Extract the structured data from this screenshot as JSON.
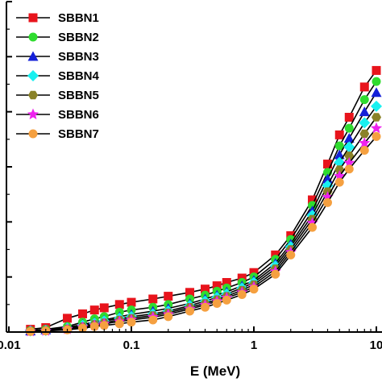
{
  "chart_data": {
    "type": "line",
    "xscale": "log",
    "xlabel": "E (MeV)",
    "ylabel": "",
    "xlim": [
      0.01,
      10
    ],
    "ylim": [
      0,
      600
    ],
    "x_tick_labels": [
      "0.01",
      "0.1",
      "1",
      "10"
    ],
    "x_ticks": [
      0.01,
      0.1,
      1,
      10
    ],
    "y_ticks": [
      0,
      100,
      200,
      300,
      400,
      500,
      600
    ],
    "legend_position": "top-left",
    "x": [
      0.015,
      0.02,
      0.03,
      0.04,
      0.05,
      0.06,
      0.08,
      0.1,
      0.15,
      0.2,
      0.3,
      0.4,
      0.5,
      0.6,
      0.8,
      1,
      1.5,
      2,
      3,
      4,
      5,
      6,
      8,
      10
    ],
    "series": [
      {
        "name": "SBBN1",
        "marker": "square",
        "color": "#e8141c",
        "values": [
          5,
          8,
          25,
          33,
          40,
          44,
          50,
          54,
          60,
          65,
          72,
          78,
          84,
          90,
          98,
          108,
          140,
          175,
          240,
          305,
          358,
          390,
          445,
          475
        ]
      },
      {
        "name": "SBBN2",
        "marker": "circle",
        "color": "#2fdc2f",
        "values": [
          3,
          5,
          10,
          18,
          24,
          28,
          36,
          40,
          45,
          50,
          60,
          67,
          74,
          80,
          90,
          100,
          132,
          168,
          230,
          290,
          338,
          370,
          422,
          455
        ]
      },
      {
        "name": "SBBN3",
        "marker": "triangle",
        "color": "#1420d8",
        "values": [
          2,
          4,
          8,
          14,
          18,
          22,
          28,
          32,
          38,
          43,
          52,
          60,
          67,
          73,
          84,
          94,
          125,
          160,
          220,
          278,
          322,
          352,
          400,
          435
        ]
      },
      {
        "name": "SBBN4",
        "marker": "diamond",
        "color": "#18f0f0",
        "values": [
          2,
          3,
          7,
          12,
          16,
          20,
          25,
          28,
          33,
          38,
          48,
          56,
          63,
          69,
          80,
          90,
          120,
          155,
          212,
          266,
          308,
          336,
          380,
          410
        ]
      },
      {
        "name": "SBBN5",
        "marker": "hexagon",
        "color": "#8a8228",
        "values": [
          2,
          3,
          6,
          10,
          14,
          17,
          22,
          25,
          30,
          35,
          45,
          52,
          59,
          65,
          76,
          86,
          115,
          150,
          205,
          255,
          295,
          320,
          360,
          390
        ]
      },
      {
        "name": "SBBN6",
        "marker": "star",
        "color": "#ee22ee",
        "values": [
          1,
          2,
          5,
          9,
          12,
          15,
          19,
          22,
          27,
          32,
          42,
          49,
          56,
          62,
          72,
          82,
          110,
          145,
          198,
          245,
          283,
          307,
          343,
          370
        ]
      },
      {
        "name": "SBBN7",
        "marker": "circle",
        "color": "#f5a040",
        "values": [
          1,
          2,
          4,
          7,
          10,
          12,
          15,
          18,
          22,
          28,
          38,
          45,
          52,
          58,
          68,
          78,
          105,
          140,
          190,
          235,
          272,
          296,
          330,
          355
        ]
      }
    ]
  }
}
